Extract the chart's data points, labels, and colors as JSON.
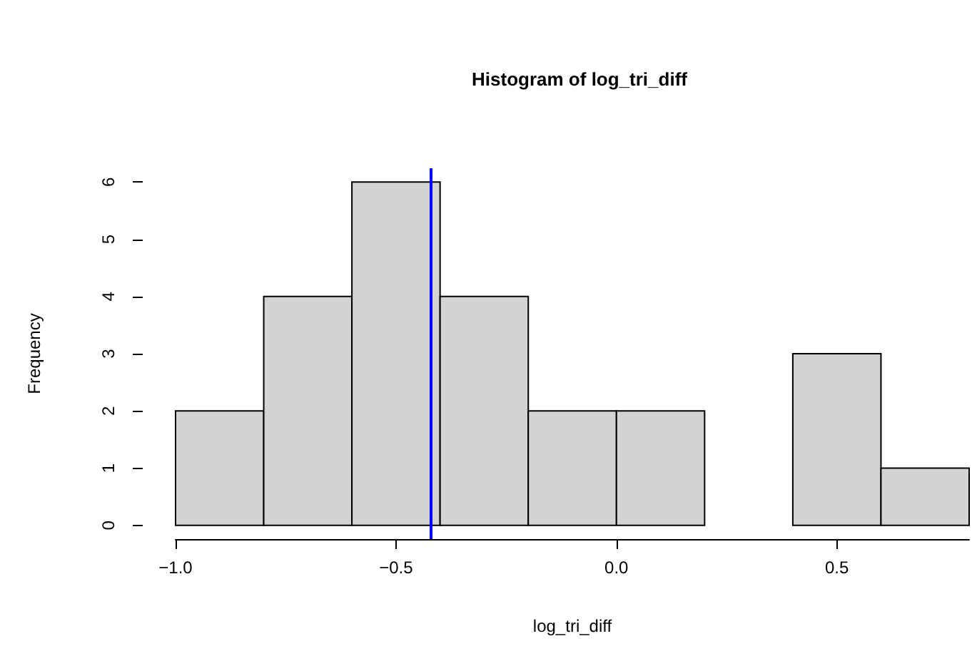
{
  "chart_data": {
    "type": "histogram",
    "title": "Histogram of log_tri_diff",
    "xlabel": "log_tri_diff",
    "ylabel": "Frequency",
    "bins": [
      -1.0,
      -0.8,
      -0.6,
      -0.4,
      -0.2,
      0.0,
      0.2,
      0.4,
      0.6,
      0.8
    ],
    "values": [
      2,
      4,
      6,
      4,
      2,
      2,
      0,
      3,
      1
    ],
    "color": "#d3d3d3",
    "xlim": [
      -1.0,
      0.8
    ],
    "xticks": [
      {
        "value": -1.0,
        "label": "−1.0"
      },
      {
        "value": -0.5,
        "label": "−0.5"
      },
      {
        "value": 0.0,
        "label": "0.0"
      },
      {
        "value": 0.5,
        "label": "0.5"
      }
    ],
    "ylim": [
      -0.24,
      6.24
    ],
    "yticks": [
      0,
      1,
      2,
      3,
      4,
      5,
      6
    ],
    "ref_lines": [
      {
        "axis": "x",
        "value": -0.42,
        "color": "#0000ff"
      }
    ],
    "grid": false
  }
}
